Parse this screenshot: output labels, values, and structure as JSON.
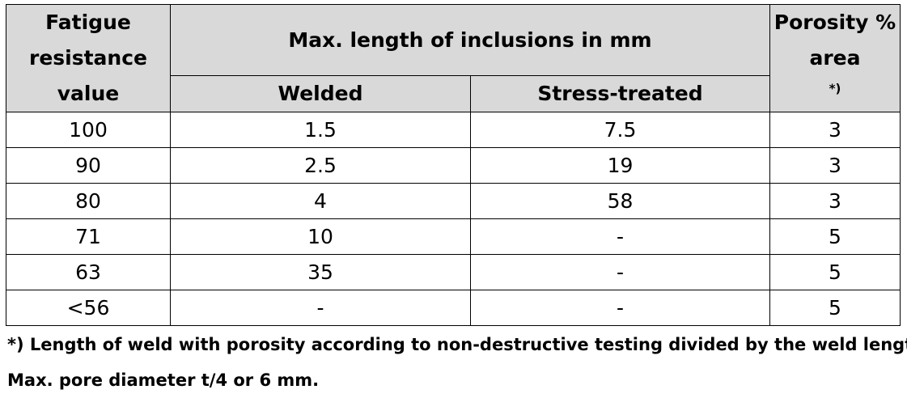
{
  "table": {
    "header": {
      "fatigue_line1": "Fatigue",
      "fatigue_line2": "resistance",
      "fatigue_line3": "value",
      "max_length": "Max. length of inclusions in mm",
      "welded": "Welded",
      "stress_treated": "Stress-treated",
      "porosity_line1": "Porosity %",
      "porosity_line2": "area",
      "porosity_marker": "*)"
    },
    "rows": [
      {
        "fatigue": "100",
        "welded": "1.5",
        "stress_treated": "7.5",
        "porosity": "3"
      },
      {
        "fatigue": "90",
        "welded": "2.5",
        "stress_treated": "19",
        "porosity": "3"
      },
      {
        "fatigue": "80",
        "welded": "4",
        "stress_treated": "58",
        "porosity": "3"
      },
      {
        "fatigue": "71",
        "welded": "10",
        "stress_treated": "-",
        "porosity": "5"
      },
      {
        "fatigue": "63",
        "welded": "35",
        "stress_treated": "-",
        "porosity": "5"
      },
      {
        "fatigue": "<56",
        "welded": "-",
        "stress_treated": "-",
        "porosity": "5"
      }
    ]
  },
  "footnotes": {
    "note1": "*) Length of weld with porosity according to non-destructive testing divided by the weld length.",
    "note2": "Max. pore diameter t/4 or 6 mm."
  },
  "colors": {
    "header_background": "#d9d9d9",
    "border": "#000000"
  }
}
